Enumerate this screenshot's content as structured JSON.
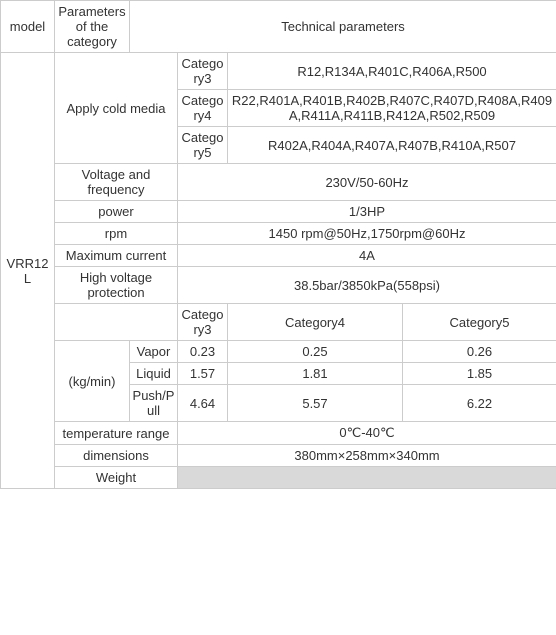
{
  "headers": {
    "model": "model",
    "params_of_category": "Parameters of the category",
    "tech_params": "Technical parameters"
  },
  "model_value": "VRR12L",
  "rows": {
    "apply_cold_media": {
      "label": "Apply cold media",
      "cat3_label": "Category3",
      "cat3_value": "R12,R134A,R401C,R406A,R500",
      "cat4_label": "Category4",
      "cat4_value": "R22,R401A,R401B,R402B,R407C,R407D,R408A,R409A,R411A,R411B,R412A,R502,R509",
      "cat5_label": "Category5",
      "cat5_value": "R402A,R404A,R407A,R407B,R410A,R507"
    },
    "voltage": {
      "label": "Voltage and frequency",
      "value": "230V/50-60Hz"
    },
    "power": {
      "label": "power",
      "value": "1/3HP"
    },
    "rpm": {
      "label": "rpm",
      "value": "1450 rpm@50Hz,1750rpm@60Hz"
    },
    "max_current": {
      "label": "Maximum current",
      "value": "4A"
    },
    "hv_protection": {
      "label": "High voltage protection",
      "value": "38.5bar/3850kPa(558psi)"
    },
    "category_headers": {
      "cat3": "Category3",
      "cat4": "Category4",
      "cat5": "Category5"
    },
    "kgmin": {
      "label": "(kg/min)",
      "vapor": {
        "label": "Vapor",
        "v3": "0.23",
        "v4": "0.25",
        "v5": "0.26"
      },
      "liquid": {
        "label": "Liquid",
        "v3": "1.57",
        "v4": "1.81",
        "v5": "1.85"
      },
      "pushpull": {
        "label": "Push/Pull",
        "v3": "4.64",
        "v4": "5.57",
        "v5": "6.22"
      }
    },
    "temp_range": {
      "label": "temperature range",
      "value": "0℃-40℃"
    },
    "dimensions": {
      "label": "dimensions",
      "value": "380mm×258mm×340mm"
    },
    "weight": {
      "label": "Weight",
      "value": ""
    }
  }
}
